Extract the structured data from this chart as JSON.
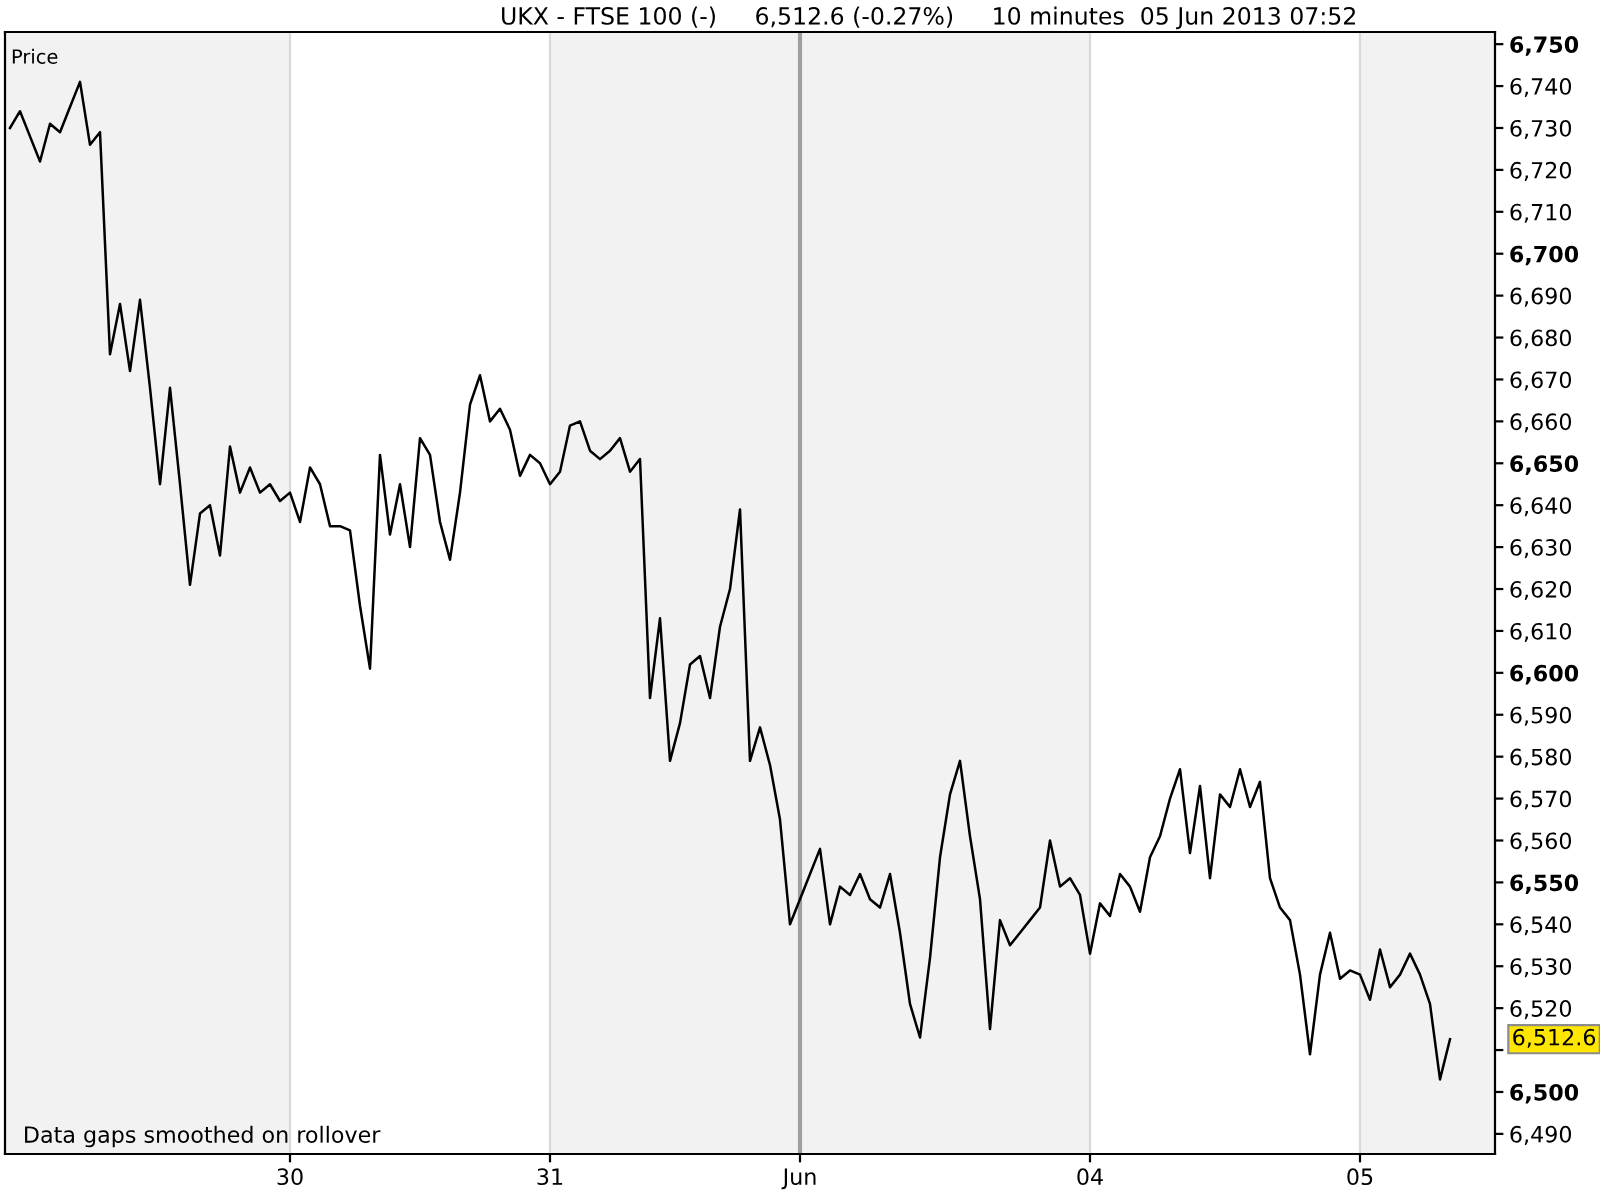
{
  "chart_data": {
    "type": "line",
    "title": "UKX - FTSE 100 (-)     6,512.6 (-0.27%)     10 minutes  05 Jun 2013 07:52",
    "ylabel": "Price",
    "annotations": [
      "Data gaps smoothed on rollover",
      "6,512.6"
    ],
    "categories": [
      null,
      null,
      null,
      null,
      null,
      null,
      null,
      null,
      null,
      null,
      null,
      null,
      null,
      null,
      null,
      null,
      null,
      null,
      null,
      null,
      null,
      null,
      null,
      null,
      null,
      null,
      null,
      null,
      "30",
      null,
      null,
      null,
      null,
      null,
      null,
      null,
      null,
      null,
      null,
      null,
      null,
      null,
      null,
      null,
      null,
      null,
      null,
      null,
      null,
      null,
      null,
      null,
      null,
      null,
      "31",
      null,
      null,
      null,
      null,
      null,
      null,
      null,
      null,
      null,
      null,
      null,
      null,
      null,
      null,
      null,
      null,
      null,
      null,
      null,
      null,
      null,
      null,
      null,
      null,
      "Jun",
      null,
      null,
      null,
      null,
      null,
      null,
      null,
      null,
      null,
      null,
      null,
      null,
      null,
      null,
      null,
      null,
      null,
      null,
      null,
      null,
      null,
      null,
      null,
      null,
      null,
      null,
      null,
      null,
      "04",
      null,
      null,
      null,
      null,
      null,
      null,
      null,
      null,
      null,
      null,
      null,
      null,
      null,
      null,
      null,
      null,
      null,
      null,
      null,
      null,
      null,
      null,
      null,
      null,
      null,
      null,
      "05",
      null,
      null,
      null,
      null,
      null,
      null,
      null,
      null,
      null,
      null,
      null,
      null,
      null
    ],
    "series": [
      {
        "color": "#000000",
        "values": [
          6730,
          6734,
          6728,
          6722,
          6731,
          6729,
          6735,
          6741,
          6726,
          6729,
          6676,
          6688,
          6672,
          6689,
          6668,
          6645,
          6668,
          6645,
          6621,
          6638,
          6640,
          6628,
          6654,
          6643,
          6649,
          6643,
          6645,
          6641,
          6643,
          6636,
          6649,
          6645,
          6635,
          6635,
          6634,
          6616,
          6601,
          6652,
          6633,
          6645,
          6630,
          6656,
          6652,
          6636,
          6627,
          6643,
          6664,
          6671,
          6660,
          6663,
          6658,
          6647,
          6652,
          6650,
          6645,
          6648,
          6659,
          6660,
          6653,
          6651,
          6653,
          6656,
          6648,
          6651,
          6594,
          6613,
          6579,
          6588,
          6602,
          6604,
          6594,
          6611,
          6620,
          6639,
          6579,
          6587,
          6578,
          6565,
          6540,
          6546,
          6552,
          6558,
          6540,
          6549,
          6547,
          6552,
          6546,
          6544,
          6552,
          6538,
          6521,
          6513,
          6532,
          6556,
          6571,
          6579,
          6561,
          6546,
          6515,
          6541,
          6535,
          6538,
          6541,
          6544,
          6560,
          6549,
          6551,
          6547,
          6533,
          6545,
          6542,
          6552,
          6549,
          6543,
          6556,
          6561,
          6570,
          6577,
          6557,
          6573,
          6551,
          6571,
          6568,
          6577,
          6568,
          6574,
          6551,
          6544,
          6541,
          6528,
          6509,
          6528,
          6538,
          6527,
          6529,
          6528,
          6522,
          6534,
          6525,
          6528,
          6533,
          6528,
          6521,
          6503,
          6512.6,
          null,
          null,
          null,
          null
        ]
      }
    ],
    "ylim": [
      6485.2,
      6752.9
    ],
    "yticks": [
      {
        "value": 6490,
        "label": "6,490"
      },
      {
        "value": 6500,
        "label": "6,500"
      },
      {
        "value": 6510,
        "label": null
      },
      {
        "value": 6520,
        "label": "6,520"
      },
      {
        "value": 6530,
        "label": "6,530"
      },
      {
        "value": 6540,
        "label": "6,540"
      },
      {
        "value": 6550,
        "label": "6,550"
      },
      {
        "value": 6560,
        "label": "6,560"
      },
      {
        "value": 6570,
        "label": "6,570"
      },
      {
        "value": 6580,
        "label": "6,580"
      },
      {
        "value": 6590,
        "label": "6,590"
      },
      {
        "value": 6600,
        "label": "6,600"
      },
      {
        "value": 6610,
        "label": "6,610"
      },
      {
        "value": 6620,
        "label": "6,620"
      },
      {
        "value": 6630,
        "label": "6,630"
      },
      {
        "value": 6640,
        "label": "6,640"
      },
      {
        "value": 6650,
        "label": "6,650"
      },
      {
        "value": 6660,
        "label": "6,660"
      },
      {
        "value": 6670,
        "label": "6,670"
      },
      {
        "value": 6680,
        "label": "6,680"
      },
      {
        "value": 6690,
        "label": "6,690"
      },
      {
        "value": 6700,
        "label": "6,700"
      },
      {
        "value": 6710,
        "label": "6,710"
      },
      {
        "value": 6720,
        "label": "6,720"
      },
      {
        "value": 6730,
        "label": "6,730"
      },
      {
        "value": 6740,
        "label": "6,740"
      },
      {
        "value": 6750,
        "label": "6,750"
      }
    ],
    "bands": [
      {
        "axis": "x",
        "from": "31",
        "to": "Jun",
        "color": "#f2f2f2"
      },
      {
        "axis": "x",
        "from": "Jun",
        "to": "04",
        "color": "#f2f2f2"
      }
    ],
    "ref_lines": [
      {
        "axis": "x",
        "value": "Jun",
        "color": "#a0a0a0"
      }
    ],
    "grid": "x"
  }
}
